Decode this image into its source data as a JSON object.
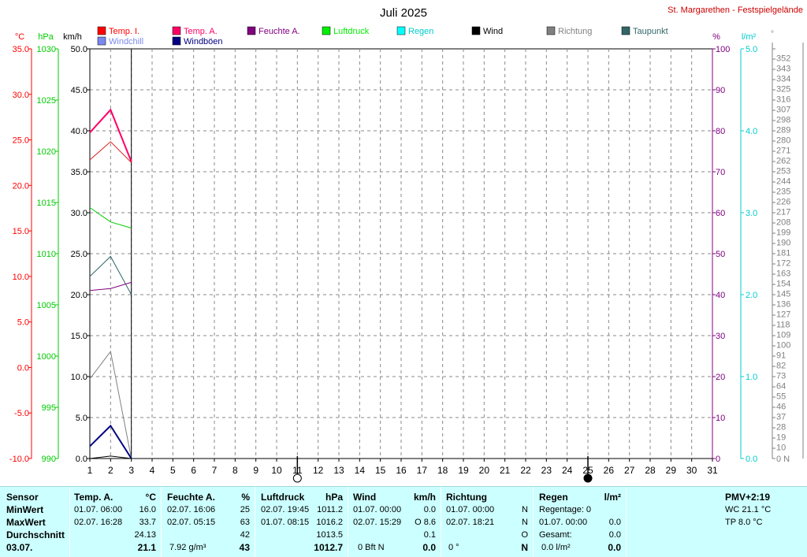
{
  "chart_data": {
    "type": "line",
    "title": "Juli 2025",
    "station": "St. Margarethen - Festspielgelände",
    "x": [
      1,
      2,
      3
    ],
    "xlim": [
      1,
      31
    ],
    "xticks": [
      "1",
      "2",
      "3",
      "4",
      "5",
      "6",
      "7",
      "8",
      "9",
      "10",
      "11",
      "12",
      "13",
      "14",
      "15",
      "16",
      "17",
      "18",
      "19",
      "20",
      "21",
      "22",
      "23",
      "24",
      "25",
      "26",
      "27",
      "28",
      "29",
      "30",
      "31"
    ],
    "grid": true,
    "moon_phases": [
      {
        "day": 11,
        "phase": "full"
      },
      {
        "day": 25,
        "phase": "new"
      }
    ],
    "axes": {
      "temp": {
        "label": "°C",
        "range": [
          -10,
          35
        ],
        "ticks": [
          "-10.0",
          "-5.0",
          "0.0",
          "5.0",
          "10.0",
          "15.0",
          "20.0",
          "25.0",
          "30.0",
          "35.0"
        ],
        "color": "#ff0000"
      },
      "pressure": {
        "label": "hPa",
        "range": [
          990,
          1030
        ],
        "ticks": [
          "990",
          "995",
          "1000",
          "1005",
          "1010",
          "1015",
          "1020",
          "1025",
          "1030"
        ],
        "color": "#00cc00"
      },
      "wind": {
        "label": "km/h",
        "range": [
          0,
          50
        ],
        "ticks": [
          "0.0",
          "5.0",
          "10.0",
          "15.0",
          "20.0",
          "25.0",
          "30.0",
          "35.0",
          "40.0",
          "45.0",
          "50.0"
        ],
        "color": "#000000"
      },
      "humidity": {
        "label": "%",
        "range": [
          0,
          100
        ],
        "ticks": [
          "0",
          "10",
          "20",
          "30",
          "40",
          "50",
          "60",
          "70",
          "80",
          "90",
          "100"
        ],
        "color": "#800080"
      },
      "rain": {
        "label": "l/m²",
        "range": [
          0,
          5
        ],
        "ticks": [
          "0.0",
          "1.0",
          "2.0",
          "3.0",
          "4.0",
          "5.0"
        ],
        "color": "#00cccc"
      },
      "direction": {
        "label": "°",
        "range": [
          0,
          360
        ],
        "ticks": [
          "0 N",
          "10",
          "19",
          "28",
          "37",
          "46",
          "55",
          "64",
          "73",
          "82",
          "91",
          "100",
          "109",
          "118",
          "127",
          "136",
          "145",
          "154",
          "163",
          "172",
          "181",
          "190",
          "199",
          "208",
          "217",
          "226",
          "235",
          "244",
          "253",
          "262",
          "271",
          "280",
          "289",
          "298",
          "307",
          "316",
          "325",
          "334",
          "343",
          "352"
        ],
        "color": "#808080"
      }
    },
    "legend": [
      {
        "name": "Temp. I.",
        "color": "#ff0000"
      },
      {
        "name": "Temp. A.",
        "color": "#ff0066"
      },
      {
        "name": "Feuchte A.",
        "color": "#800080"
      },
      {
        "name": "Luftdruck",
        "color": "#00ee00"
      },
      {
        "name": "Regen",
        "color": "#00ffff"
      },
      {
        "name": "Wind",
        "color": "#000000"
      },
      {
        "name": "Richtung",
        "color": "#808080"
      },
      {
        "name": "Taupunkt",
        "color": "#336666"
      },
      {
        "name": "Windchill",
        "color": "#7b89ee"
      },
      {
        "name": "Windböen",
        "color": "#000080"
      }
    ],
    "series": [
      {
        "name": "Temp. A.",
        "axis": "temp",
        "color": "#ff0066",
        "width": 2,
        "values": [
          25.8,
          28.3,
          22.6
        ]
      },
      {
        "name": "Temp. I.",
        "axis": "temp",
        "color": "#dd2222",
        "width": 1,
        "values": [
          22.8,
          24.8,
          22.5
        ]
      },
      {
        "name": "Luftdruck",
        "axis": "pressure",
        "color": "#00cc00",
        "width": 1,
        "values": [
          1014.5,
          1013.1,
          1012.5
        ]
      },
      {
        "name": "Taupunkt",
        "axis": "temp",
        "color": "#336666",
        "width": 1,
        "values": [
          10.0,
          12.2,
          8.0
        ]
      },
      {
        "name": "Feuchte A.",
        "axis": "humidity",
        "color": "#800080",
        "width": 1,
        "values": [
          41,
          41.5,
          43
        ]
      },
      {
        "name": "Richtung",
        "axis": "direction",
        "color": "#808080",
        "width": 1,
        "values": [
          70,
          94,
          0
        ]
      },
      {
        "name": "Windböen",
        "axis": "wind",
        "color": "#000080",
        "width": 2,
        "values": [
          1.5,
          4.0,
          0.0
        ]
      },
      {
        "name": "Wind",
        "axis": "wind",
        "color": "#000000",
        "width": 1,
        "values": [
          0.0,
          0.3,
          0.0
        ]
      }
    ]
  },
  "stats": {
    "headers": {
      "sensor": "Sensor",
      "temp": "Temp. A.",
      "temp_unit": "°C",
      "hum": "Feuchte A.",
      "hum_unit": "%",
      "press": "Luftdruck",
      "press_unit": "hPa",
      "wind": "Wind",
      "wind_unit": "km/h",
      "dir": "Richtung",
      "rain": "Regen",
      "rain_unit": "l/m²",
      "pmv": "PMV+2:19"
    },
    "rows": {
      "min": "MinWert",
      "max": "MaxWert",
      "avg": "Durchschnitt",
      "date": "03.07."
    },
    "temp": {
      "min_time": "01.07.  06:00",
      "min_val": "16.0",
      "max_time": "02.07.  16:28",
      "max_val": "33.7",
      "avg": "24.13",
      "current": "21.1"
    },
    "hum": {
      "min_time": "02.07.  16:06",
      "min_val": "25",
      "max_time": "02.07.  05:15",
      "max_val": "63",
      "avg": "42",
      "abs": "7.92 g/m³",
      "current": "43"
    },
    "press": {
      "min_time": "02.07.  19:45",
      "min_val": "1011.2",
      "max_time": "01.07.  08:15",
      "max_val": "1016.2",
      "avg": "1013.5",
      "current": "1012.7"
    },
    "wind": {
      "min_time": "01.07.  00:00",
      "min_val": "0.0",
      "max_time": "02.07.  15:29",
      "max_val": "O 8.6",
      "avg": "0.1",
      "bft": "0 Bft N",
      "current": "0.0"
    },
    "dir": {
      "min_time": "01.07.  00:00",
      "min_val": "N",
      "max_time": "02.07.  18:21",
      "max_val": "N",
      "avg": "O",
      "deg": "0 °",
      "current": "N"
    },
    "rain": {
      "days": "Regentage: 0",
      "max_time": "01.07.  00:00",
      "max_val": "0.0",
      "total_label": "Gesamt:",
      "total_val": "0.0",
      "today": "0.0 l/m²",
      "current": "0.0"
    },
    "pmv": {
      "wc": "WC 21.1 °C",
      "tp": "TP 8.0 °C"
    }
  }
}
